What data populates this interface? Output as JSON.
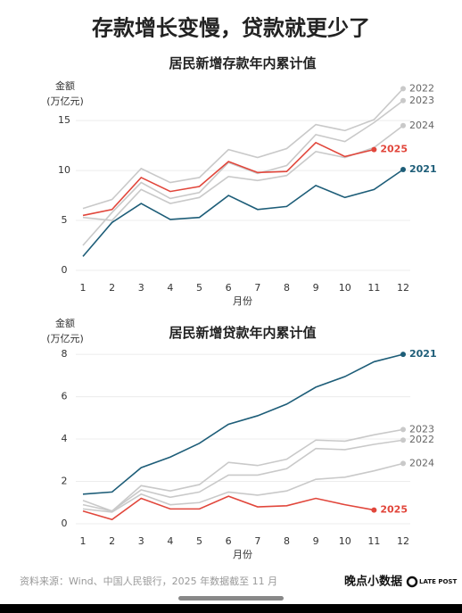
{
  "title": "存款增长变慢，贷款就更少了",
  "chart_data": [
    {
      "type": "line",
      "title": "居民新增存款年内累计值",
      "y_label": "金额",
      "y_unit": "(万亿元)",
      "x_label": "月份",
      "x": [
        1,
        2,
        3,
        4,
        5,
        6,
        7,
        8,
        9,
        10,
        11,
        12
      ],
      "xticks": [
        1,
        2,
        3,
        4,
        5,
        6,
        7,
        8,
        9,
        10,
        11,
        12
      ],
      "xlim": [
        1,
        12
      ],
      "ylim": [
        0,
        18.5
      ],
      "yticks": [
        0,
        5,
        10,
        15
      ],
      "grid": true,
      "series": [
        {
          "name": "2022",
          "color": "#c9c9c9",
          "values": [
            6.2,
            7.1,
            10.2,
            8.8,
            9.3,
            12.1,
            11.3,
            12.2,
            14.6,
            14.0,
            15.1,
            18.2
          ]
        },
        {
          "name": "2023",
          "color": "#c9c9c9",
          "values": [
            2.5,
            5.8,
            8.8,
            7.2,
            7.8,
            10.8,
            9.7,
            10.5,
            13.6,
            12.9,
            14.8,
            17.0
          ]
        },
        {
          "name": "2024",
          "color": "#c9c9c9",
          "values": [
            5.3,
            5.0,
            8.1,
            6.7,
            7.3,
            9.4,
            9.0,
            9.5,
            11.9,
            11.3,
            12.3,
            14.5
          ]
        },
        {
          "name": "2021",
          "color": "#1d5d78",
          "values": [
            1.4,
            4.8,
            6.7,
            5.1,
            5.3,
            7.5,
            6.1,
            6.4,
            8.5,
            7.3,
            8.1,
            10.1
          ]
        },
        {
          "name": "2025",
          "color": "#e1463b",
          "values": [
            5.5,
            6.1,
            9.3,
            7.9,
            8.4,
            10.9,
            9.8,
            9.9,
            12.8,
            11.4,
            12.1,
            null
          ]
        }
      ]
    },
    {
      "type": "line",
      "title": "居民新增贷款年内累计值",
      "y_label": "金额",
      "y_unit": "(万亿元)",
      "x_label": "月份",
      "x": [
        1,
        2,
        3,
        4,
        5,
        6,
        7,
        8,
        9,
        10,
        11,
        12
      ],
      "xticks": [
        1,
        2,
        3,
        4,
        5,
        6,
        7,
        8,
        9,
        10,
        11,
        12
      ],
      "xlim": [
        1,
        12
      ],
      "ylim": [
        0,
        8.3
      ],
      "yticks": [
        0,
        2,
        4,
        6,
        8
      ],
      "grid": true,
      "series": [
        {
          "name": "2023",
          "color": "#c9c9c9",
          "values": [
            0.9,
            0.6,
            1.8,
            1.55,
            1.85,
            2.9,
            2.75,
            3.05,
            3.95,
            3.9,
            4.2,
            4.45
          ]
        },
        {
          "name": "2022",
          "color": "#c9c9c9",
          "values": [
            1.1,
            0.6,
            1.6,
            1.25,
            1.5,
            2.3,
            2.3,
            2.6,
            3.55,
            3.5,
            3.75,
            3.95
          ]
        },
        {
          "name": "2024",
          "color": "#c9c9c9",
          "values": [
            0.7,
            0.55,
            1.4,
            0.9,
            1.0,
            1.5,
            1.35,
            1.55,
            2.1,
            2.2,
            2.5,
            2.85
          ]
        },
        {
          "name": "2021",
          "color": "#1d5d78",
          "values": [
            1.4,
            1.5,
            2.65,
            3.15,
            3.8,
            4.7,
            5.1,
            5.65,
            6.45,
            6.95,
            7.65,
            8.0
          ]
        },
        {
          "name": "2025",
          "color": "#e1463b",
          "values": [
            0.6,
            0.2,
            1.2,
            0.7,
            0.7,
            1.3,
            0.8,
            0.85,
            1.2,
            0.9,
            0.65,
            null
          ]
        }
      ]
    }
  ],
  "source": "资料来源：Wind、中国人民银行，2025 年数据截至 11 月",
  "brand": "晚点小数据",
  "brand_logo": "LATE POST"
}
